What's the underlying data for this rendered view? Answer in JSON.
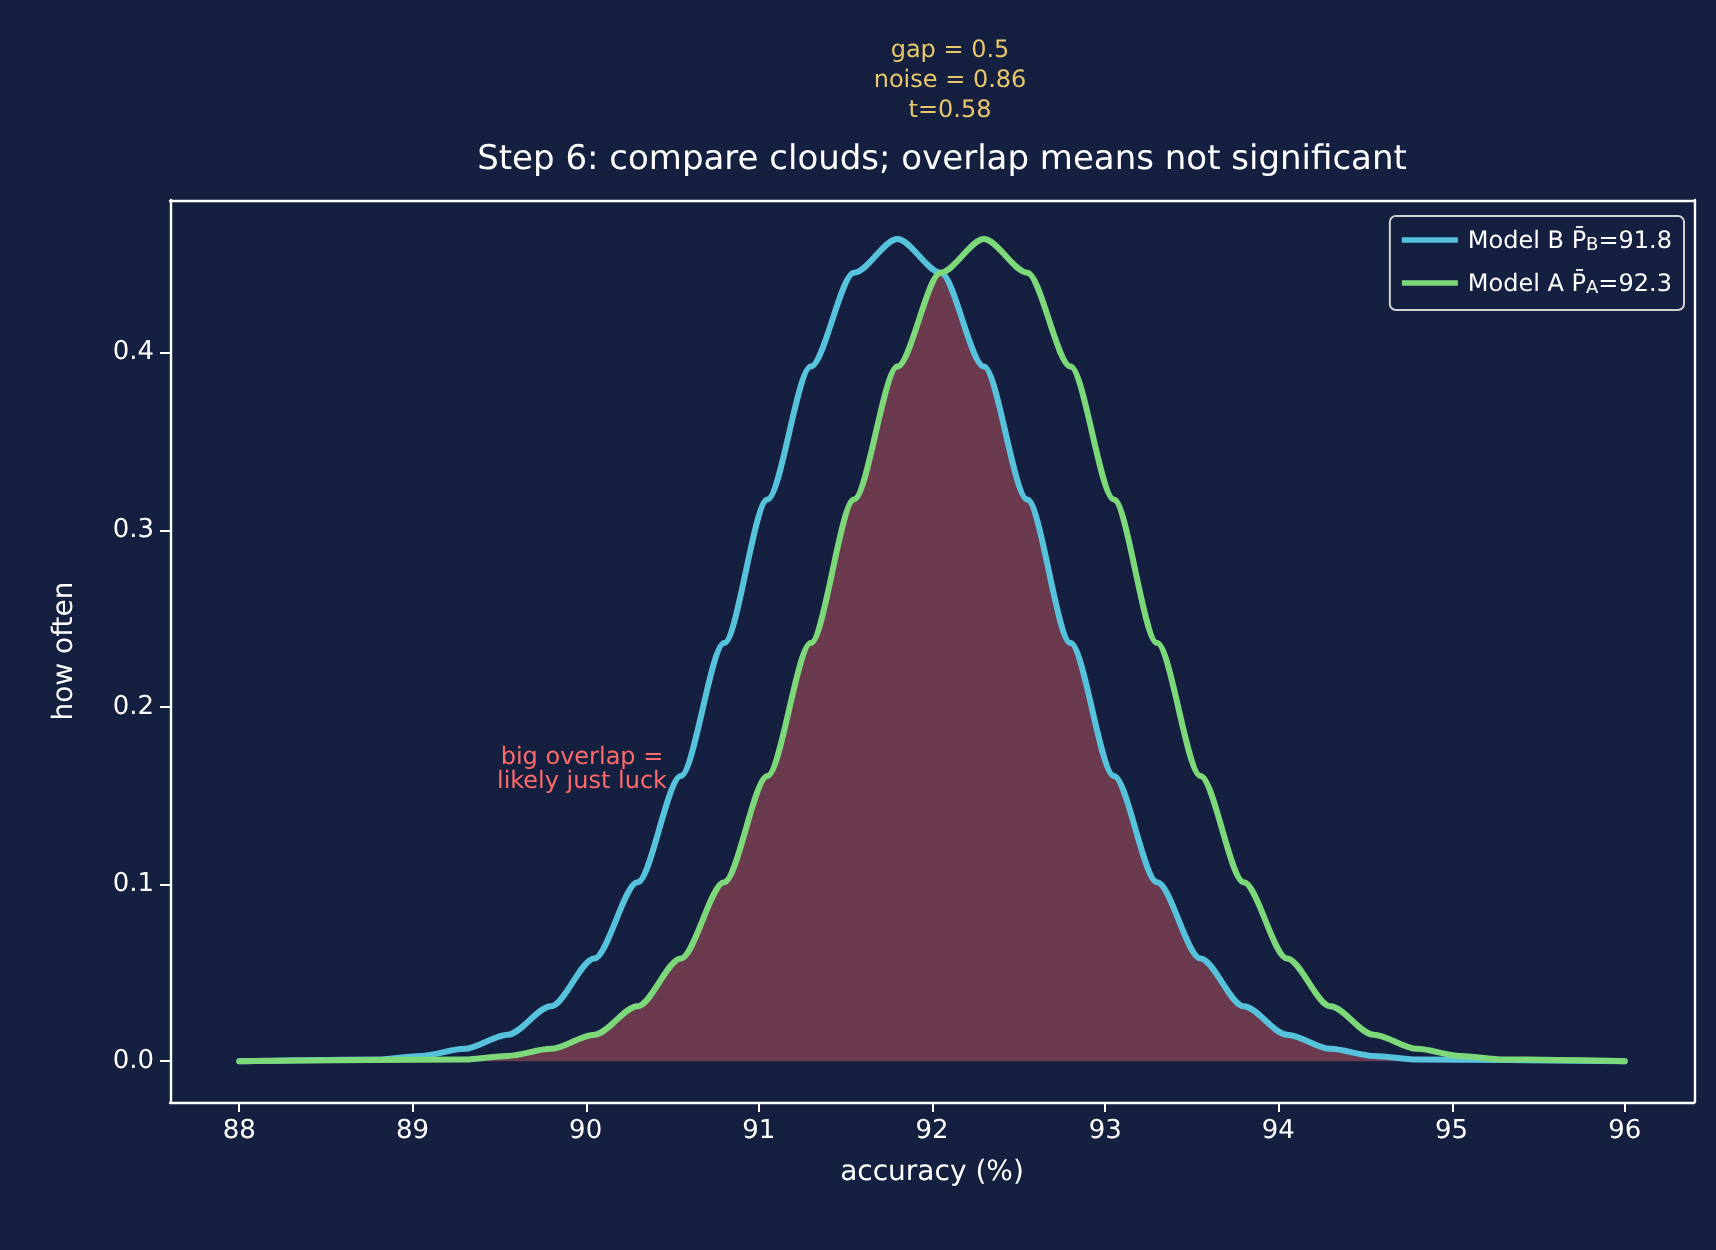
{
  "chart_data": {
    "type": "line",
    "title": "Step 6: compare clouds; overlap means not significant",
    "subtitle": "gap = 0.5\nnoise = 0.86\nt=0.58",
    "xlabel": "accuracy (%)",
    "ylabel": "how often",
    "xlim": [
      87.6,
      96.4
    ],
    "xticks": [
      88,
      89,
      90,
      91,
      92,
      93,
      94,
      95,
      96
    ],
    "ylim": [
      -0.023,
      0.486
    ],
    "yticks": [
      {
        "value": 0,
        "label": "0.0"
      },
      0.1,
      0.2,
      0.3,
      0.4
    ],
    "grid": false,
    "legend": "top right",
    "marker": "none",
    "line_style": "solid",
    "annotations": [
      "big overlap =\nlikely just luck"
    ],
    "series": [
      {
        "type": "area",
        "color": "#6b3a4f",
        "x": [
          88,
          89.3,
          89.55,
          89.8,
          90.05,
          90.3,
          90.55,
          90.8,
          91.05,
          91.3,
          91.55,
          91.8,
          92.05,
          92.3,
          92.55,
          92.8,
          93.05,
          93.3,
          93.55,
          93.8,
          94.05,
          94.3,
          94.55,
          94.8,
          96
        ],
        "values": [
          0,
          0.001,
          0.003,
          0.007,
          0.015,
          0.031,
          0.058,
          0.101,
          0.161,
          0.236,
          0.317,
          0.392,
          0.445,
          0.392,
          0.317,
          0.236,
          0.161,
          0.101,
          0.058,
          0.031,
          0.015,
          0.007,
          0.003,
          0.001,
          0
        ]
      },
      {
        "name": "Model B P̄$_{B}$=91.8",
        "color": "#56c2dc",
        "x": [
          88,
          88.8,
          89.05,
          89.3,
          89.55,
          89.8,
          90.05,
          90.3,
          90.55,
          90.8,
          91.05,
          91.3,
          91.55,
          91.8,
          92.05,
          92.3,
          92.55,
          92.8,
          93.05,
          93.3,
          93.55,
          93.8,
          94.05,
          94.3,
          94.55,
          94.8,
          96
        ],
        "values": [
          0,
          0.001,
          0.003,
          0.007,
          0.015,
          0.031,
          0.058,
          0.101,
          0.161,
          0.236,
          0.317,
          0.392,
          0.445,
          0.464,
          0.445,
          0.392,
          0.317,
          0.236,
          0.161,
          0.101,
          0.058,
          0.031,
          0.015,
          0.007,
          0.003,
          0.001,
          0
        ]
      },
      {
        "name": "Model A P̄$_{A}$=92.3",
        "color": "#7dd87a",
        "x": [
          88,
          89.3,
          89.55,
          89.8,
          90.05,
          90.3,
          90.55,
          90.8,
          91.05,
          91.3,
          91.55,
          91.8,
          92.05,
          92.3,
          92.55,
          92.8,
          93.05,
          93.3,
          93.55,
          93.8,
          94.05,
          94.3,
          94.55,
          94.8,
          95.05,
          95.3,
          96
        ],
        "values": [
          0,
          0.001,
          0.003,
          0.007,
          0.015,
          0.031,
          0.058,
          0.101,
          0.161,
          0.236,
          0.317,
          0.392,
          0.445,
          0.464,
          0.445,
          0.392,
          0.317,
          0.236,
          0.161,
          0.101,
          0.058,
          0.031,
          0.015,
          0.007,
          0.003,
          0.001,
          0
        ]
      }
    ]
  }
}
